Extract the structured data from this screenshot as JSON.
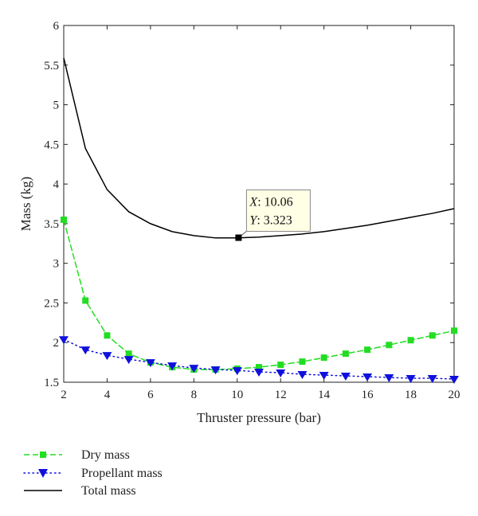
{
  "chart_data": {
    "type": "line",
    "xlabel": "Thruster pressure (bar)",
    "ylabel": "Mass (kg)",
    "xlim": [
      2,
      20
    ],
    "ylim": [
      1.5,
      6
    ],
    "x_ticks": [
      2,
      4,
      6,
      8,
      10,
      12,
      14,
      16,
      18,
      20
    ],
    "y_ticks": [
      1.5,
      2,
      2.5,
      3,
      3.5,
      4,
      4.5,
      5,
      5.5,
      6
    ],
    "grid": false,
    "legend_position": "bottom-left-outside",
    "x": [
      2,
      3,
      4,
      5,
      6,
      7,
      8,
      9,
      10,
      11,
      12,
      13,
      14,
      15,
      16,
      17,
      18,
      19,
      20
    ],
    "series": [
      {
        "name": "Dry mass",
        "color": "#22dd22",
        "line_style": "dashed",
        "marker": "square",
        "values": [
          3.55,
          2.53,
          2.09,
          1.86,
          1.75,
          1.69,
          1.66,
          1.66,
          1.67,
          1.69,
          1.72,
          1.76,
          1.81,
          1.86,
          1.91,
          1.97,
          2.03,
          2.09,
          2.15
        ]
      },
      {
        "name": "Propellant mass",
        "color": "#1010dd",
        "line_style": "dotted",
        "marker": "triangle-down",
        "values": [
          2.04,
          1.91,
          1.84,
          1.79,
          1.75,
          1.71,
          1.68,
          1.66,
          1.65,
          1.63,
          1.62,
          1.6,
          1.59,
          1.58,
          1.57,
          1.56,
          1.55,
          1.55,
          1.54
        ]
      },
      {
        "name": "Total mass",
        "color": "#000000",
        "line_style": "solid",
        "marker": "none",
        "values": [
          5.59,
          4.45,
          3.93,
          3.65,
          3.5,
          3.4,
          3.35,
          3.32,
          3.32,
          3.33,
          3.35,
          3.37,
          3.4,
          3.44,
          3.48,
          3.53,
          3.58,
          3.63,
          3.69
        ]
      }
    ],
    "datatip": {
      "x": 10.06,
      "y": 3.323,
      "x_label": "X",
      "y_label": "Y",
      "x_text": ": 10.06",
      "y_text": ": 3.323"
    }
  },
  "legend": {
    "items": [
      "Dry mass",
      "Propellant mass",
      "Total mass"
    ]
  }
}
